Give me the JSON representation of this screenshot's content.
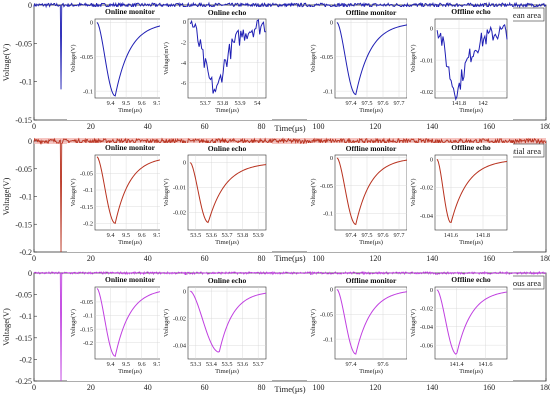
{
  "colors": {
    "ocean": "#1f1fb4",
    "residential": "#b8321f",
    "residential_band": "#f4b7b1",
    "mountain": "#c040e0"
  },
  "chart_data": [
    {
      "type": "line",
      "panel": "ocean",
      "legend": "Ocean area",
      "legend_position": "top-right",
      "xlabel": "Time(μs)",
      "ylabel": "Voltage(V)",
      "xlim": [
        0,
        180
      ],
      "ylim": [
        -0.15,
        0
      ],
      "xticks": [
        "0",
        "20",
        "40",
        "60",
        "80",
        "100",
        "120",
        "140",
        "160",
        "180"
      ],
      "yticks": [
        "0",
        "-0.05",
        "-0.1",
        "-0.15"
      ],
      "pulses": [
        {
          "t": 9.5,
          "depth": -0.11
        },
        {
          "t": 53.8,
          "depth": -0.007
        },
        {
          "t": 97.5,
          "depth": -0.11
        },
        {
          "t": 141.8,
          "depth": -0.02
        }
      ],
      "insets": [
        {
          "title": "Online monitor",
          "ylabel": "Voltage(V)",
          "xlabel": "Time(μs)",
          "xlim": [
            9.3,
            9.75
          ],
          "ylim": [
            -0.11,
            0.005
          ],
          "xticks": [
            "9.4",
            "9.5",
            "9.6",
            "9.7"
          ],
          "yticks": [
            "0",
            "-0.05",
            "-0.1"
          ],
          "min_x": 9.43,
          "min_y": -0.107,
          "noisy": false
        },
        {
          "title": "Online echo",
          "ylabel": "Voltage(mV)",
          "xlabel": "Time(μs)",
          "xlim": [
            53.6,
            54.05
          ],
          "ylim": [
            -7.5,
            0.3
          ],
          "xticks": [
            "53.7",
            "53.8",
            "53.9",
            "54"
          ],
          "yticks": [
            "0",
            "-2",
            "-4",
            "-6"
          ],
          "min_x": 53.77,
          "min_y": -6.8,
          "noisy": true
        },
        {
          "title": "Offline monitor",
          "ylabel": "Voltage(V)",
          "xlabel": "Time(μs)",
          "xlim": [
            97.3,
            97.75
          ],
          "ylim": [
            -0.11,
            0.005
          ],
          "xticks": [
            "97.4",
            "97.5",
            "97.6",
            "97.7"
          ],
          "yticks": [
            "0",
            "-0.05",
            "-0.1"
          ],
          "min_x": 97.43,
          "min_y": -0.105,
          "noisy": false
        },
        {
          "title": "Offline echo",
          "ylabel": "Voltage(V)",
          "xlabel": "Time(μs)",
          "xlim": [
            141.6,
            142.2
          ],
          "ylim": [
            -0.022,
            0.003
          ],
          "xticks": [
            "141.8",
            "142"
          ],
          "yticks": [
            "0",
            "-0.01",
            "-0.02"
          ],
          "min_x": 141.79,
          "min_y": -0.02,
          "noisy": true
        }
      ]
    },
    {
      "type": "line",
      "panel": "residential",
      "legend": "Residential area",
      "legend_position": "top-right",
      "xlabel": "Time(μs)",
      "ylabel": "Voltage(V)",
      "xlim": [
        0,
        180
      ],
      "ylim": [
        -0.2,
        0
      ],
      "xticks": [
        "0",
        "20",
        "40",
        "60",
        "80",
        "100",
        "120",
        "140",
        "160",
        "180"
      ],
      "yticks": [
        "0",
        "-0.05",
        "-0.1",
        "-0.15",
        "-0.2"
      ],
      "pulses": [
        {
          "t": 9.5,
          "depth": -0.2
        },
        {
          "t": 53.6,
          "depth": -0.025
        },
        {
          "t": 97.5,
          "depth": -0.12
        },
        {
          "t": 141.6,
          "depth": -0.045
        }
      ],
      "insets": [
        {
          "title": "Online monitor",
          "ylabel": "Voltage(V)",
          "xlabel": "Time(μs)",
          "xlim": [
            9.3,
            9.75
          ],
          "ylim": [
            -0.22,
            0.005
          ],
          "xticks": [
            "9.4",
            "9.5",
            "9.6",
            "9.7"
          ],
          "yticks": [
            "-0.05",
            "-0.1",
            "-0.15",
            "-0.2"
          ],
          "min_x": 9.43,
          "min_y": -0.2,
          "noisy": false
        },
        {
          "title": "Online echo",
          "ylabel": "Voltage(V)",
          "xlabel": "Time(μs)",
          "xlim": [
            53.45,
            53.95
          ],
          "ylim": [
            -0.027,
            0.003
          ],
          "xticks": [
            "53.5",
            "53.6",
            "53.7",
            "53.8",
            "53.9"
          ],
          "yticks": [
            "0",
            "-0.01",
            "-0.02"
          ],
          "min_x": 53.58,
          "min_y": -0.024,
          "noisy": false
        },
        {
          "title": "Offline monitor",
          "ylabel": "Voltage(V)",
          "xlabel": "Time(μs)",
          "xlim": [
            97.3,
            97.75
          ],
          "ylim": [
            -0.13,
            0.005
          ],
          "xticks": [
            "97.4",
            "97.5",
            "97.6",
            "97.7"
          ],
          "yticks": [
            "0",
            "-0.05",
            "-0.1"
          ],
          "min_x": 97.43,
          "min_y": -0.12,
          "noisy": false
        },
        {
          "title": "Offline echo",
          "ylabel": "Voltage(V)",
          "xlabel": "Time(μs)",
          "xlim": [
            141.5,
            141.95
          ],
          "ylim": [
            -0.05,
            0.003
          ],
          "xticks": [
            "141.6",
            "141.8"
          ],
          "yticks": [
            "0",
            "-0.02",
            "-0.04"
          ],
          "min_x": 141.6,
          "min_y": -0.045,
          "noisy": false
        }
      ]
    },
    {
      "type": "line",
      "panel": "mountain",
      "legend": "Mountainous area",
      "legend_position": "top-right",
      "xlabel": "Time(μs)",
      "ylabel": "Voltage(V)",
      "xlim": [
        0,
        180
      ],
      "ylim": [
        -0.25,
        0
      ],
      "xticks": [
        "0",
        "20",
        "40",
        "60",
        "80",
        "100",
        "120",
        "140",
        "160",
        "180"
      ],
      "yticks": [
        "0",
        "-0.05",
        "-0.1",
        "-0.15",
        "-0.2",
        "-0.25"
      ],
      "pulses": [
        {
          "t": 9.5,
          "depth": -0.25
        },
        {
          "t": 53.5,
          "depth": -0.045
        },
        {
          "t": 97.5,
          "depth": -0.13
        },
        {
          "t": 141.4,
          "depth": -0.07
        }
      ],
      "insets": [
        {
          "title": "Online monitor",
          "ylabel": "Voltage(V)",
          "xlabel": "Time(μs)",
          "xlim": [
            9.3,
            9.75
          ],
          "ylim": [
            -0.26,
            0.005
          ],
          "xticks": [
            "9.4",
            "9.5",
            "9.6",
            "9.7"
          ],
          "yticks": [
            "-0.05",
            "-0.1",
            "-0.15",
            "-0.2"
          ],
          "min_x": 9.43,
          "min_y": -0.25,
          "noisy": false
        },
        {
          "title": "Online echo",
          "ylabel": "Voltage(V)",
          "xlabel": "Time(μs)",
          "xlim": [
            53.25,
            53.75
          ],
          "ylim": [
            -0.05,
            0.003
          ],
          "xticks": [
            "53.3",
            "53.4",
            "53.5",
            "53.6",
            "53.7"
          ],
          "yticks": [
            "0",
            "-0.02",
            "-0.04"
          ],
          "min_x": 53.45,
          "min_y": -0.045,
          "noisy": false
        },
        {
          "title": "Offline monitor",
          "ylabel": "Voltage(V)",
          "xlabel": "Time(μs)",
          "xlim": [
            97.3,
            97.75
          ],
          "ylim": [
            -0.14,
            0.005
          ],
          "xticks": [
            "97.4",
            "97.6"
          ],
          "yticks": [
            "0",
            "-0.05",
            "-0.1"
          ],
          "min_x": 97.43,
          "min_y": -0.13,
          "noisy": false
        },
        {
          "title": "Offline echo",
          "ylabel": "Voltage(V)",
          "xlabel": "Time(μs)",
          "xlim": [
            141.25,
            141.75
          ],
          "ylim": [
            -0.075,
            0.003
          ],
          "xticks": [
            "141.4",
            "141.6"
          ],
          "yticks": [
            "0",
            "-0.02",
            "-0.04",
            "-0.06"
          ],
          "min_x": 141.4,
          "min_y": -0.07,
          "noisy": false
        }
      ]
    }
  ]
}
